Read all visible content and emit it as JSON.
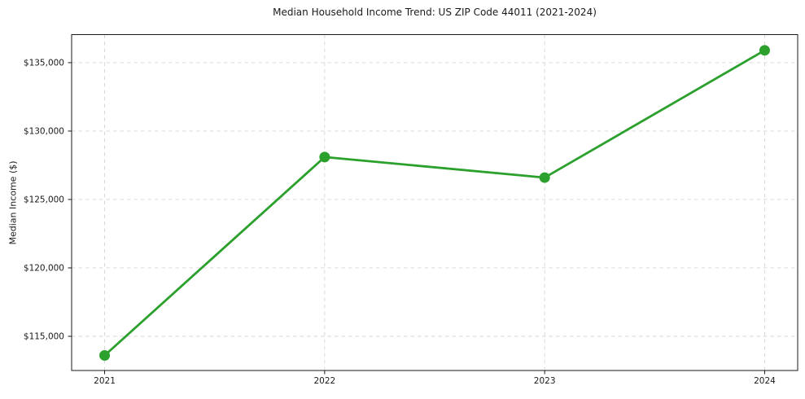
{
  "chart_data": {
    "type": "line",
    "title": "Median Household Income Trend: US ZIP Code 44011 (2021-2024)",
    "xlabel": "",
    "ylabel": "Median Income ($)",
    "x": [
      2021,
      2022,
      2023,
      2024
    ],
    "series": [
      {
        "name": "Median Household Income",
        "values": [
          113600,
          128100,
          126600,
          135900
        ]
      }
    ],
    "xtick_labels": [
      "2021",
      "2022",
      "2023",
      "2024"
    ],
    "yticks": [
      115000,
      120000,
      125000,
      130000,
      135000
    ],
    "ytick_labels": [
      "$115,000",
      "$120,000",
      "$125,000",
      "$130,000",
      "$135,000"
    ],
    "xlim": [
      2020.85,
      2024.15
    ],
    "ylim": [
      112500,
      137050
    ],
    "grid": true,
    "legend": "none",
    "line_color": "#2ca02c",
    "grid_color": "#d5d5d5",
    "spine_color": "#1a1a1a",
    "marker": "circle"
  }
}
